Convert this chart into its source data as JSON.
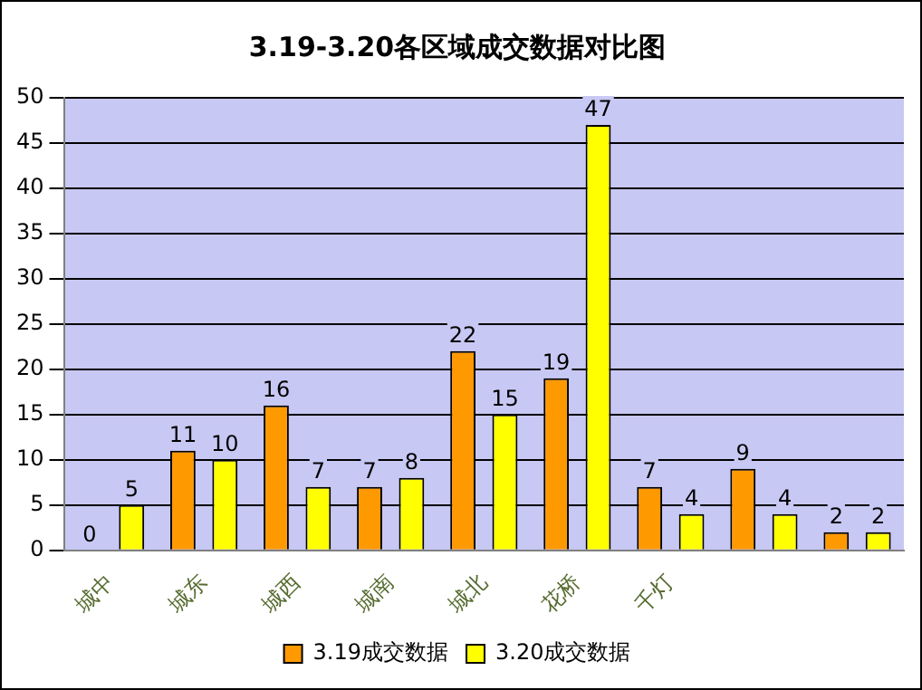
{
  "chart_data": {
    "type": "bar",
    "title": "3.19-3.20各区域成交数据对比图",
    "categories": [
      "城中",
      "城东",
      "城西",
      "城南",
      "城北",
      "花桥",
      "千灯",
      null,
      null
    ],
    "series": [
      {
        "name": "3.19成交数据",
        "color": "#ff9900",
        "values": [
          0,
          11,
          16,
          7,
          22,
          19,
          7,
          9,
          2
        ]
      },
      {
        "name": "3.20成交数据",
        "color": "#ffff00",
        "values": [
          5,
          10,
          7,
          8,
          15,
          47,
          4,
          4,
          2
        ]
      }
    ],
    "ylim": [
      0,
      50
    ],
    "yticks": [
      0,
      5,
      10,
      15,
      20,
      25,
      30,
      35,
      40,
      45,
      50
    ],
    "grid": "y",
    "legend": "bottom",
    "data_labels": true
  }
}
